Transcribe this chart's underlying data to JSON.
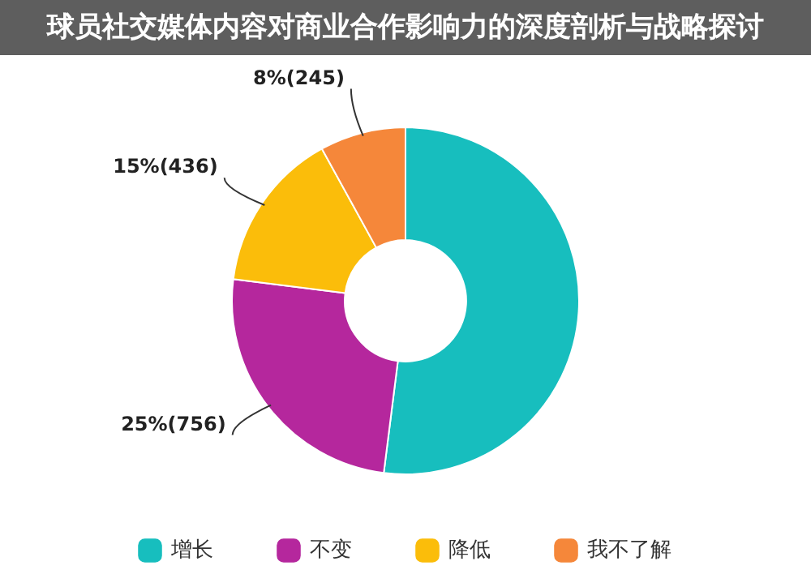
{
  "chart_data": {
    "type": "donut",
    "title": "球员社交媒体内容对商业合作影响力的深度剖析与战略探讨",
    "categories": [
      "增长",
      "不变",
      "降低",
      "我不了解"
    ],
    "values": [
      52,
      25,
      15,
      8
    ],
    "colors": [
      "#17bebe",
      "#b5279d",
      "#fbbd0a",
      "#f5873a"
    ],
    "value_labels": [
      null,
      "25%(756)",
      "15%(436)",
      "8%(245)"
    ],
    "legend": "bottom"
  }
}
